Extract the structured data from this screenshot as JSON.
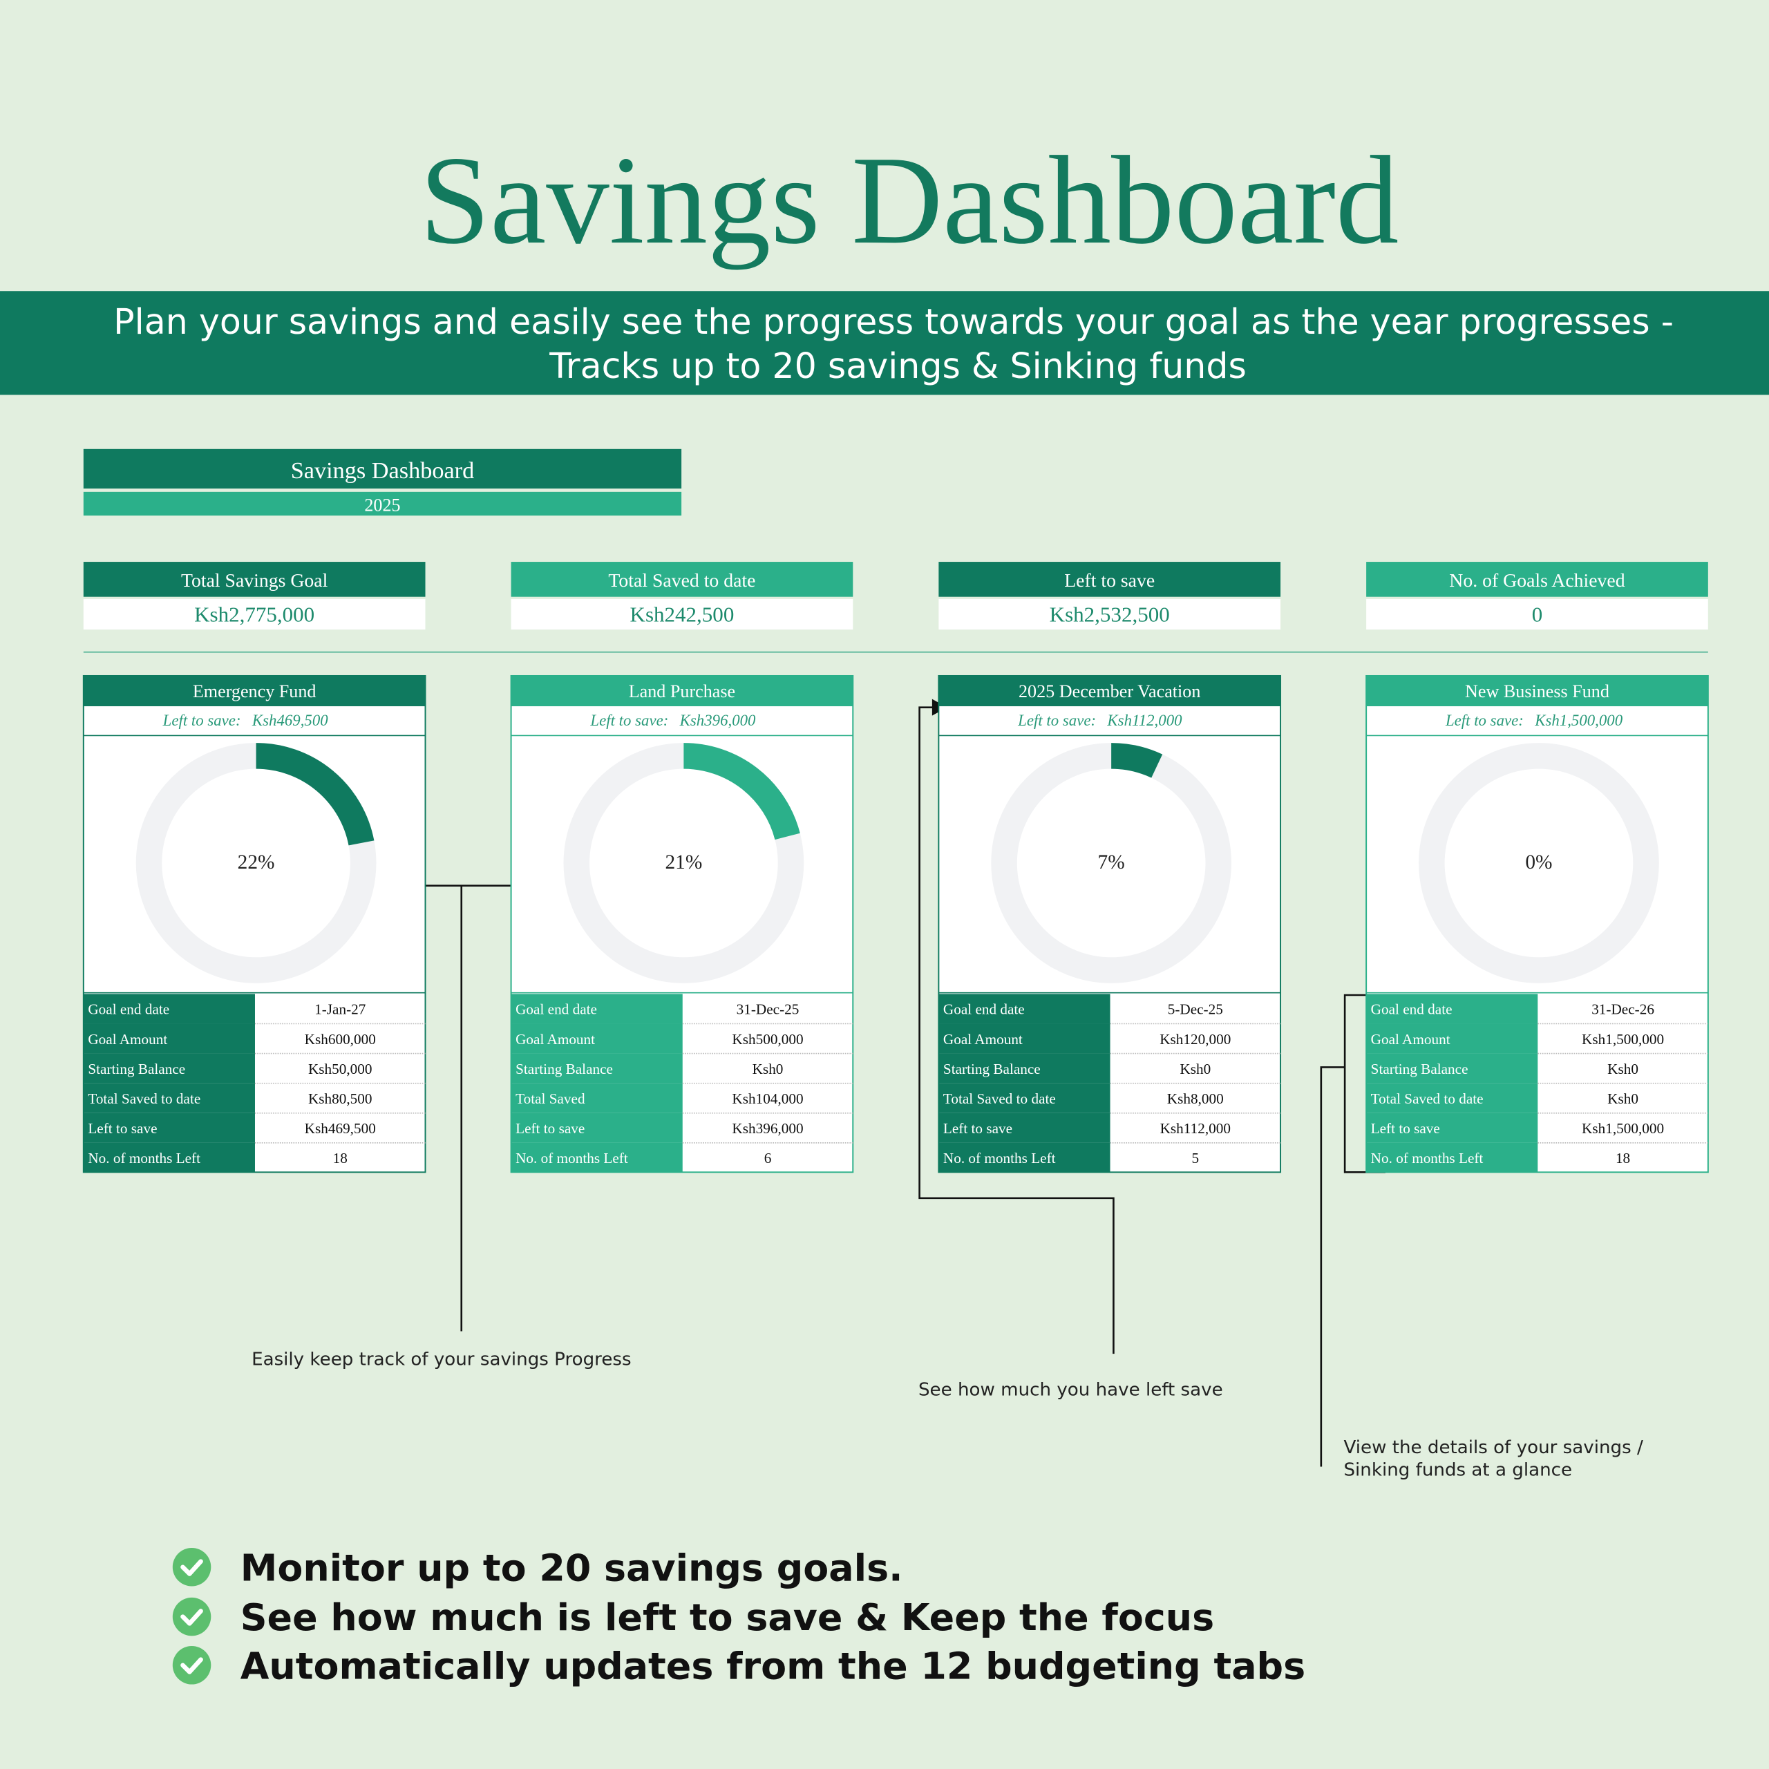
{
  "header": {
    "title": "Savings Dashboard",
    "banner": [
      "Plan your savings and easily see the progress towards your goal as the year progresses -",
      "Tracks up to 20 savings & Sinking funds"
    ]
  },
  "dashboard": {
    "title": "Savings  Dashboard",
    "year": "2025",
    "kpis": [
      {
        "label": "Total Savings Goal",
        "value": "Ksh2,775,000"
      },
      {
        "label": "Total Saved to date",
        "value": "Ksh242,500"
      },
      {
        "label": "Left to save",
        "value": "Ksh2,532,500"
      },
      {
        "label": "No. of Goals Achieved",
        "value": "0"
      }
    ],
    "goals": [
      {
        "name": "Emergency Fund",
        "left_label": "Left to save:",
        "left_value": "Ksh469,500",
        "progress": 22,
        "progress_label": "22%",
        "rows": [
          [
            "Goal end date",
            "1-Jan-27"
          ],
          [
            "Goal Amount",
            "Ksh600,000"
          ],
          [
            "Starting Balance",
            "Ksh50,000"
          ],
          [
            "Total Saved to date",
            "Ksh80,500"
          ],
          [
            "Left to save",
            "Ksh469,500"
          ],
          [
            "No. of months Left",
            "18"
          ]
        ]
      },
      {
        "name": "Land Purchase",
        "left_label": "Left to save:",
        "left_value": "Ksh396,000",
        "progress": 21,
        "progress_label": "21%",
        "rows": [
          [
            "Goal end date",
            "31-Dec-25"
          ],
          [
            "Goal Amount",
            "Ksh500,000"
          ],
          [
            "Starting Balance",
            "Ksh0"
          ],
          [
            "Total Saved",
            "Ksh104,000"
          ],
          [
            "Left to save",
            "Ksh396,000"
          ],
          [
            "No. of months Left",
            "6"
          ]
        ]
      },
      {
        "name": "2025 December Vacation",
        "left_label": "Left to save:",
        "left_value": "Ksh112,000",
        "progress": 7,
        "progress_label": "7%",
        "rows": [
          [
            "Goal end date",
            "5-Dec-25"
          ],
          [
            "Goal Amount",
            "Ksh120,000"
          ],
          [
            "Starting Balance",
            "Ksh0"
          ],
          [
            "Total Saved to date",
            "Ksh8,000"
          ],
          [
            "Left to save",
            "Ksh112,000"
          ],
          [
            "No. of months Left",
            "5"
          ]
        ]
      },
      {
        "name": "New Business Fund",
        "left_label": "Left to save:",
        "left_value": "Ksh1,500,000",
        "progress": 0,
        "progress_label": "0%",
        "rows": [
          [
            "Goal end date",
            "31-Dec-26"
          ],
          [
            "Goal Amount",
            "Ksh1,500,000"
          ],
          [
            "Starting Balance",
            "Ksh0"
          ],
          [
            "Total Saved to date",
            "Ksh0"
          ],
          [
            "Left to save",
            "Ksh1,500,000"
          ],
          [
            "No. of months Left",
            "18"
          ]
        ]
      }
    ]
  },
  "annotations": [
    "Easily keep track of your savings Progress",
    "See how much you have left save",
    "View the details of your savings /",
    "Sinking funds at a glance"
  ],
  "features": [
    "Monitor up to 20 savings goals.",
    "See how much is left to save & Keep the focus",
    "Automatically updates from the 12 budgeting tabs"
  ]
}
